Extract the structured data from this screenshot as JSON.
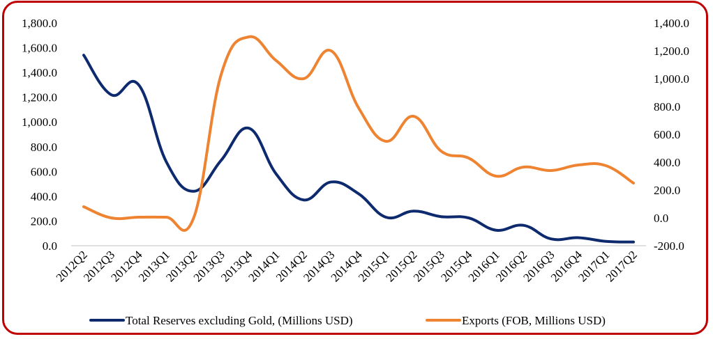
{
  "chart_data": {
    "type": "line",
    "title": "",
    "categories": [
      "2012Q2",
      "2012Q3",
      "2012Q4",
      "2013Q1",
      "2013Q2",
      "2013Q3",
      "2013Q4",
      "2014Q1",
      "2014Q2",
      "2014Q3",
      "2014Q4",
      "2015Q1",
      "2015Q2",
      "2015Q3",
      "2015Q4",
      "2016Q1",
      "2016Q2",
      "2016Q3",
      "2016Q4",
      "2017Q1",
      "2017Q2"
    ],
    "y_left": {
      "ylim": [
        0,
        1800
      ],
      "ticks": [
        "1,800.0",
        "1,600.0",
        "1,400.0",
        "1,200.0",
        "1,000.0",
        "800.0",
        "600.0",
        "400.0",
        "200.0",
        "0.0"
      ]
    },
    "y_right": {
      "ylim": [
        -200,
        1400
      ],
      "ticks": [
        "1,400.0",
        "1,200.0",
        "1,000.0",
        "800.0",
        "600.0",
        "400.0",
        "200.0",
        "0.0",
        "-200.0"
      ]
    },
    "grid": false,
    "legend_position": "bottom",
    "series": [
      {
        "name": "Total Reserves excluding Gold, (Millions USD)",
        "axis": "left",
        "color": "#0e2a6e",
        "values": [
          1540,
          1220,
          1300,
          680,
          440,
          690,
          950,
          580,
          370,
          515,
          420,
          230,
          280,
          235,
          225,
          125,
          165,
          55,
          65,
          35,
          30
        ]
      },
      {
        "name": "Exports (FOB, Millions USD)",
        "axis": "right",
        "color": "#ee8432",
        "values": [
          80,
          0,
          5,
          5,
          0,
          1030,
          1300,
          1130,
          1000,
          1200,
          790,
          550,
          730,
          480,
          430,
          300,
          365,
          340,
          380,
          375,
          250
        ]
      }
    ]
  },
  "colors": {
    "frame": "#c00000",
    "axis": "#bfbfbf"
  }
}
